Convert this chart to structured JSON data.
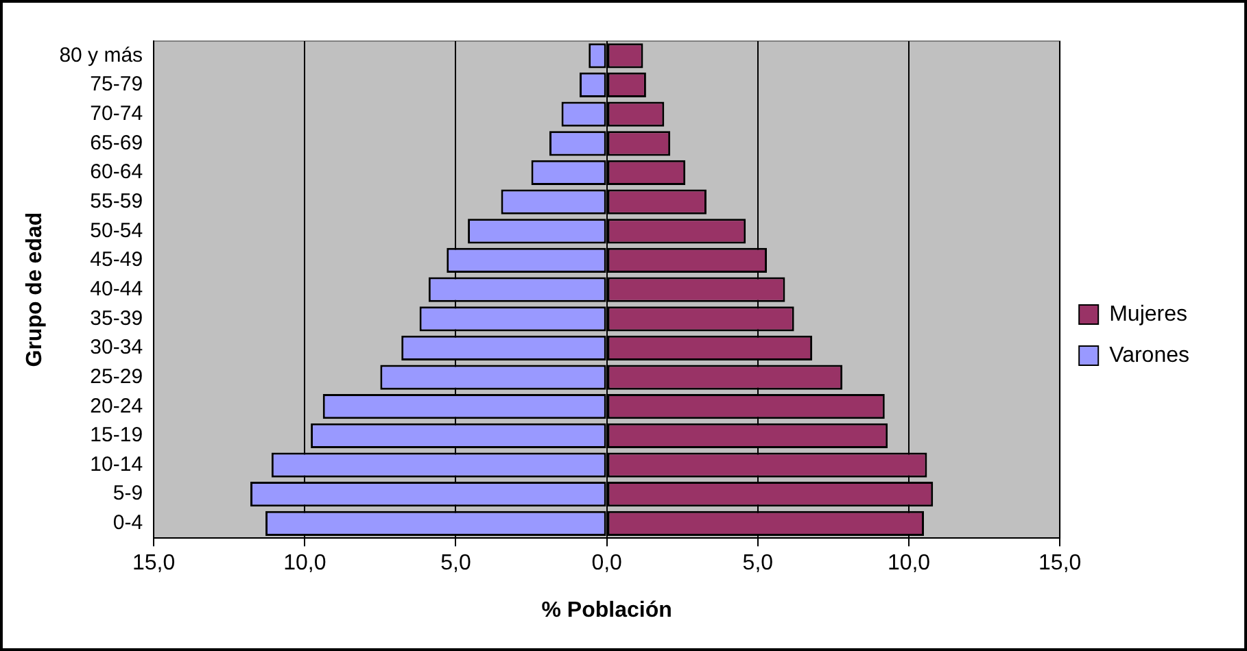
{
  "chart_data": {
    "type": "bar",
    "orientation": "horizontal",
    "stacked": true,
    "xlabel": "% Población",
    "ylabel": "Grupo de edad",
    "categories": [
      "80 y más",
      "75-79",
      "70-74",
      "65-69",
      "60-64",
      "55-59",
      "50-54",
      "45-49",
      "40-44",
      "35-39",
      "30-34",
      "25-29",
      "20-24",
      "15-19",
      "10-14",
      "5-9",
      "0-4"
    ],
    "series": [
      {
        "name": "Mujeres",
        "color": "#993366",
        "values": [
          1.2,
          1.3,
          1.9,
          2.1,
          2.6,
          3.3,
          4.6,
          5.3,
          5.9,
          6.2,
          6.8,
          7.8,
          9.2,
          9.3,
          10.6,
          10.8,
          10.5
        ]
      },
      {
        "name": "Varones",
        "color": "#9999ff",
        "values": [
          -0.6,
          -0.9,
          -1.5,
          -1.9,
          -2.5,
          -3.5,
          -4.6,
          -5.3,
          -5.9,
          -6.2,
          -6.8,
          -7.5,
          -9.4,
          -9.8,
          -11.1,
          -11.8,
          -11.3
        ]
      }
    ],
    "xlim": [
      -15,
      15
    ],
    "xticks": [
      {
        "value": -15,
        "label": "15,0"
      },
      {
        "value": -10,
        "label": "10,0"
      },
      {
        "value": -5,
        "label": "5,0"
      },
      {
        "value": 0,
        "label": "0,0"
      },
      {
        "value": 5,
        "label": "5,0"
      },
      {
        "value": 10,
        "label": "10,0"
      },
      {
        "value": 15,
        "label": "15,0"
      }
    ],
    "grid": "x",
    "legend": "right"
  }
}
